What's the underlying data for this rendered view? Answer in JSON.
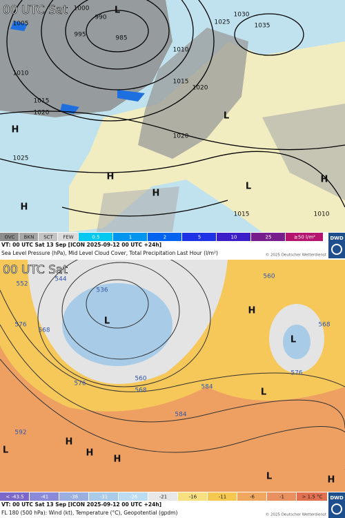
{
  "top": {
    "time_label": "00 UTC Sat",
    "legend": [
      "OVC",
      "BKN",
      "SCT",
      "FEW",
      "0.5",
      "1",
      "2",
      "5",
      "10",
      "25",
      "≥50 l/m²"
    ],
    "info_line1": "VT: 00 UTC Sat  13 Sep [ICON 2025-09-12 00 UTC +24h]",
    "info_line2": "Sea Level Pressure (hPa), Mid Level Cloud Cover, Total Precipitation Last Hour (l/m²)",
    "copyright": "© 2025 Deutscher Wetterdienst",
    "logo": "DWD",
    "map_labels": [
      "1000",
      "990",
      "995",
      "985",
      "1005",
      "1010",
      "1015",
      "1020",
      "1025",
      "1010",
      "1015",
      "1020",
      "1030",
      "1025",
      "1035",
      "1020",
      "1015",
      "1010",
      "L",
      "H",
      "H",
      "H",
      "L",
      "L",
      "H",
      "H"
    ]
  },
  "bottom": {
    "time_label": "00 UTC Sat",
    "legend": [
      "< -43.5",
      "-41",
      "-36",
      "-31",
      "-26",
      "-21",
      "-16",
      "-11",
      "-6",
      "-1",
      "> 1.5 °C"
    ],
    "info_line1": "VT: 00 UTC Sat  13 Sep [ICON 2025-09-12 00 UTC +24h]",
    "info_line2": "FL 180 (500 hPa): Wind (kt), Temperature (°C), Geopotential (gpdm)",
    "copyright": "© 2025 Deutscher Wetterdienst",
    "logo": "DWD",
    "map_labels": [
      "552",
      "544",
      "536",
      "576",
      "568",
      "560",
      "568",
      "576",
      "584",
      "592",
      "560",
      "568",
      "584",
      "576",
      "L",
      "L",
      "L",
      "H",
      "H",
      "H",
      "L",
      "L",
      "H",
      "H"
    ]
  }
}
